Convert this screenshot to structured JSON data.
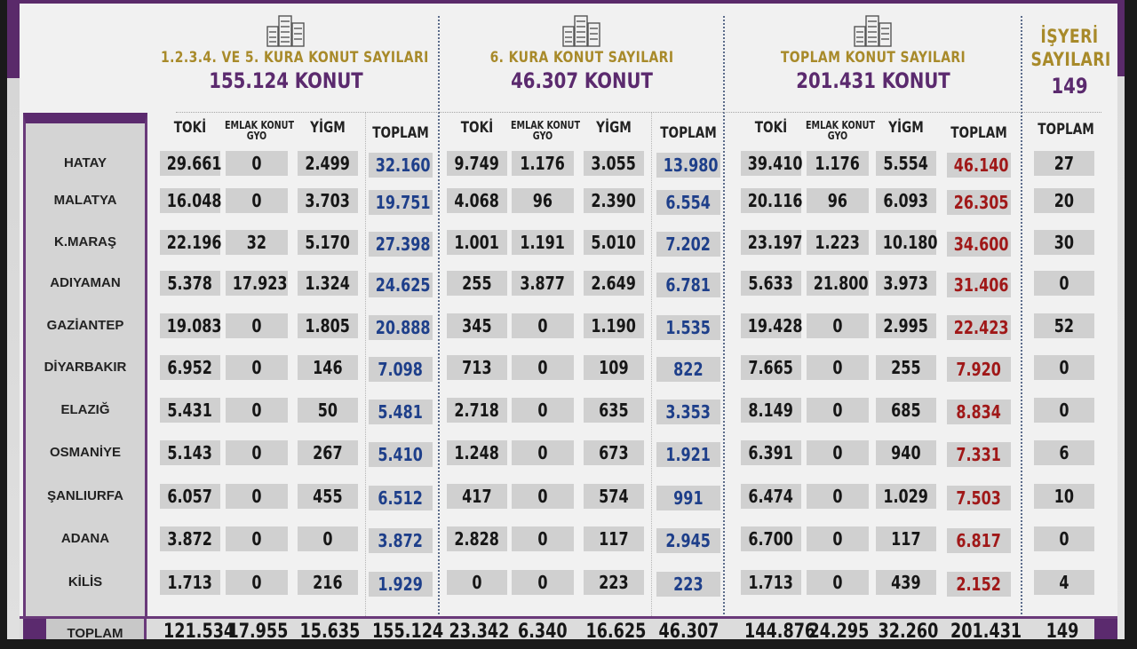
{
  "sections": [
    {
      "title": "1.2.3.4. VE 5. KURA  KONUT SAYILARI",
      "count": "155.124 KONUT",
      "icon": "building-icon"
    },
    {
      "title": "6. KURA KONUT SAYILARI",
      "count": "46.307 KONUT",
      "icon": "building-icon"
    },
    {
      "title": "TOPLAM KONUT SAYILARI",
      "count": "201.431 KONUT",
      "icon": "building-icon"
    },
    {
      "title_line1": "İŞYERİ",
      "title_line2": "SAYILARI",
      "count": "149"
    }
  ],
  "column_headers": {
    "toki": "TOKİ",
    "emlak_line1": "EMLAK KONUT",
    "emlak_line2": "GYO",
    "yigm": "YİGM",
    "toplam": "TOPLAM"
  },
  "provinces": [
    "HATAY",
    "MALATYA",
    "K.MARAŞ",
    "ADIYAMAN",
    "GAZİANTEP",
    "DİYARBAKIR",
    "ELAZIĞ",
    "OSMANİYE",
    "ŞANLIURFA",
    "ADANA",
    "KİLİS"
  ],
  "rows": [
    {
      "k15": [
        "29.661",
        "0",
        "2.499",
        "32.160"
      ],
      "k6": [
        "9.749",
        "1.176",
        "3.055",
        "13.980"
      ],
      "tot": [
        "39.410",
        "1.176",
        "5.554",
        "46.140"
      ],
      "isyeri": "27"
    },
    {
      "k15": [
        "16.048",
        "0",
        "3.703",
        "19.751"
      ],
      "k6": [
        "4.068",
        "96",
        "2.390",
        "6.554"
      ],
      "tot": [
        "20.116",
        "96",
        "6.093",
        "26.305"
      ],
      "isyeri": "20"
    },
    {
      "k15": [
        "22.196",
        "32",
        "5.170",
        "27.398"
      ],
      "k6": [
        "1.001",
        "1.191",
        "5.010",
        "7.202"
      ],
      "tot": [
        "23.197",
        "1.223",
        "10.180",
        "34.600"
      ],
      "isyeri": "30"
    },
    {
      "k15": [
        "5.378",
        "17.923",
        "1.324",
        "24.625"
      ],
      "k6": [
        "255",
        "3.877",
        "2.649",
        "6.781"
      ],
      "tot": [
        "5.633",
        "21.800",
        "3.973",
        "31.406"
      ],
      "isyeri": "0"
    },
    {
      "k15": [
        "19.083",
        "0",
        "1.805",
        "20.888"
      ],
      "k6": [
        "345",
        "0",
        "1.190",
        "1.535"
      ],
      "tot": [
        "19.428",
        "0",
        "2.995",
        "22.423"
      ],
      "isyeri": "52"
    },
    {
      "k15": [
        "6.952",
        "0",
        "146",
        "7.098"
      ],
      "k6": [
        "713",
        "0",
        "109",
        "822"
      ],
      "tot": [
        "7.665",
        "0",
        "255",
        "7.920"
      ],
      "isyeri": "0"
    },
    {
      "k15": [
        "5.431",
        "0",
        "50",
        "5.481"
      ],
      "k6": [
        "2.718",
        "0",
        "635",
        "3.353"
      ],
      "tot": [
        "8.149",
        "0",
        "685",
        "8.834"
      ],
      "isyeri": "0"
    },
    {
      "k15": [
        "5.143",
        "0",
        "267",
        "5.410"
      ],
      "k6": [
        "1.248",
        "0",
        "673",
        "1.921"
      ],
      "tot": [
        "6.391",
        "0",
        "940",
        "7.331"
      ],
      "isyeri": "6"
    },
    {
      "k15": [
        "6.057",
        "0",
        "455",
        "6.512"
      ],
      "k6": [
        "417",
        "0",
        "574",
        "991"
      ],
      "tot": [
        "6.474",
        "0",
        "1.029",
        "7.503"
      ],
      "isyeri": "10"
    },
    {
      "k15": [
        "3.872",
        "0",
        "0",
        "3.872"
      ],
      "k6": [
        "2.828",
        "0",
        "117",
        "2.945"
      ],
      "tot": [
        "6.700",
        "0",
        "117",
        "6.817"
      ],
      "isyeri": "0"
    },
    {
      "k15": [
        "1.713",
        "0",
        "216",
        "1.929"
      ],
      "k6": [
        "0",
        "0",
        "223",
        "223"
      ],
      "tot": [
        "1.713",
        "0",
        "439",
        "2.152"
      ],
      "isyeri": "4"
    }
  ],
  "totals": {
    "label": "TOPLAM",
    "k15": [
      "121.534",
      "17.955",
      "15.635",
      "155.124"
    ],
    "k6": [
      "23.342",
      "6.340",
      "16.625",
      "46.307"
    ],
    "tot": [
      "144.876",
      "24.295",
      "32.260",
      "201.431"
    ],
    "isyeri": "149"
  },
  "colors": {
    "purple": "#5b2a6e",
    "gold": "#a88a2a",
    "blue_total": "#1e3f8a",
    "red_total": "#a01818",
    "cell_bg": "#d0d0d0"
  }
}
